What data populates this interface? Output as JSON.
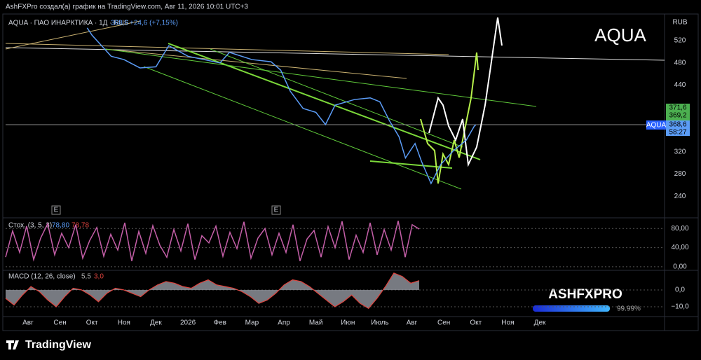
{
  "header": {
    "text": "AshFXPro создал(а) график на TradingView.com, Авг 11, 2026 10:01 UTC+3"
  },
  "watermark": "AQUA",
  "currency": "RUB",
  "price_tags": {
    "high": "371,6",
    "low": "369,2",
    "symbol": "AQUA",
    "last": "368,6",
    "timer": "58:27"
  },
  "events": [
    "E",
    "E"
  ],
  "brand": {
    "name": "ASHFXPRO",
    "progress": "99.99%"
  },
  "footer": {
    "logo": "TradingView"
  },
  "chart_data": [
    {
      "type": "line",
      "title": "AQUA · ПАО ИНАРКТИКА · 1Д · RUS",
      "last": "368,6",
      "change": "+24,6 (+7,15%)",
      "color": "#5b9cf6",
      "x": [
        1.85,
        2.0,
        2.3,
        2.6,
        3.0,
        3.5,
        4.0,
        4.4,
        5.0,
        5.5,
        6.0,
        6.3,
        7.0,
        7.6,
        7.9,
        8.2,
        8.6,
        9.0,
        9.3,
        9.6,
        10.2,
        10.7,
        11.0,
        11.3,
        11.6,
        11.8,
        12.1,
        12.3,
        12.6,
        12.9,
        13.3,
        13.7,
        13.95,
        14.0
      ],
      "values": [
        543,
        530,
        511,
        492,
        486,
        471,
        473,
        511,
        492,
        486,
        480,
        499,
        486,
        482,
        467,
        429,
        398,
        391,
        369,
        404,
        414,
        417,
        410,
        376,
        347,
        309,
        335,
        303,
        263,
        297,
        322,
        341,
        366,
        368.6
      ],
      "xlim": [
        -0.7,
        19.9
      ],
      "ylim": [
        205,
        568
      ],
      "yticks": [
        240,
        280,
        320,
        440,
        480,
        520
      ],
      "xticks": [
        {
          "value": 0,
          "label": "Авг"
        },
        {
          "value": 1,
          "label": "Сен"
        },
        {
          "value": 2,
          "label": "Окт"
        },
        {
          "value": 3,
          "label": "Ноя"
        },
        {
          "value": 4,
          "label": "Дек"
        },
        {
          "value": 5,
          "label": "2026"
        },
        {
          "value": 6,
          "label": "Фев"
        },
        {
          "value": 7,
          "label": "Мар"
        },
        {
          "value": 8,
          "label": "Апр"
        },
        {
          "value": 9,
          "label": "Май"
        },
        {
          "value": 10,
          "label": "Июн"
        },
        {
          "value": 11,
          "label": "Июль"
        },
        {
          "value": 12,
          "label": "Авг"
        },
        {
          "value": 13,
          "label": "Сен"
        },
        {
          "value": 14,
          "label": "Окт"
        },
        {
          "value": 15,
          "label": "Ноя"
        },
        {
          "value": 16,
          "label": "Дек"
        }
      ]
    },
    {
      "type": "line",
      "title": "Стох. (3, 5, 3)",
      "k": "78,80",
      "d": "78,78",
      "color": "#c45fa8",
      "values": [
        20,
        75,
        30,
        85,
        15,
        60,
        90,
        25,
        70,
        40,
        88,
        18,
        55,
        82,
        22,
        68,
        35,
        92,
        12,
        74,
        28,
        86,
        45,
        20,
        78,
        33,
        90,
        15,
        65,
        50,
        85,
        22,
        72,
        38,
        94,
        18,
        60,
        80,
        25,
        70,
        30,
        88,
        12,
        58,
        76,
        20,
        84,
        40,
        95,
        15,
        66,
        30,
        92,
        25,
        78,
        35,
        96,
        20,
        88,
        78.8
      ],
      "ylim": [
        -6,
        95
      ],
      "yticks": [
        {
          "value": 0,
          "label": "0,00"
        },
        {
          "value": 40,
          "label": "40,00"
        },
        {
          "value": 80,
          "label": "80,00"
        }
      ]
    },
    {
      "type": "area",
      "title": "MACD (12, 26, close)",
      "macd": "5,5",
      "signal": "3,0",
      "color": "#e0443e",
      "values": [
        -5,
        -9,
        -3,
        2,
        -1,
        -6,
        -10,
        -4,
        1,
        0,
        -3,
        -7,
        -2,
        1,
        0,
        -2,
        -4,
        0,
        3,
        5,
        4,
        2,
        1,
        4,
        6,
        3,
        2,
        1,
        -1,
        -4,
        -8,
        -6,
        -2,
        3,
        6,
        5,
        2,
        -2,
        -6,
        -10,
        -7,
        -3,
        -8,
        -11,
        -5,
        2,
        10,
        8,
        4,
        5.5
      ],
      "ylim": [
        -15,
        10.8
      ],
      "yticks": [
        {
          "value": 0,
          "label": "0,0"
        },
        {
          "value": -10,
          "label": "−10,0"
        }
      ]
    }
  ]
}
